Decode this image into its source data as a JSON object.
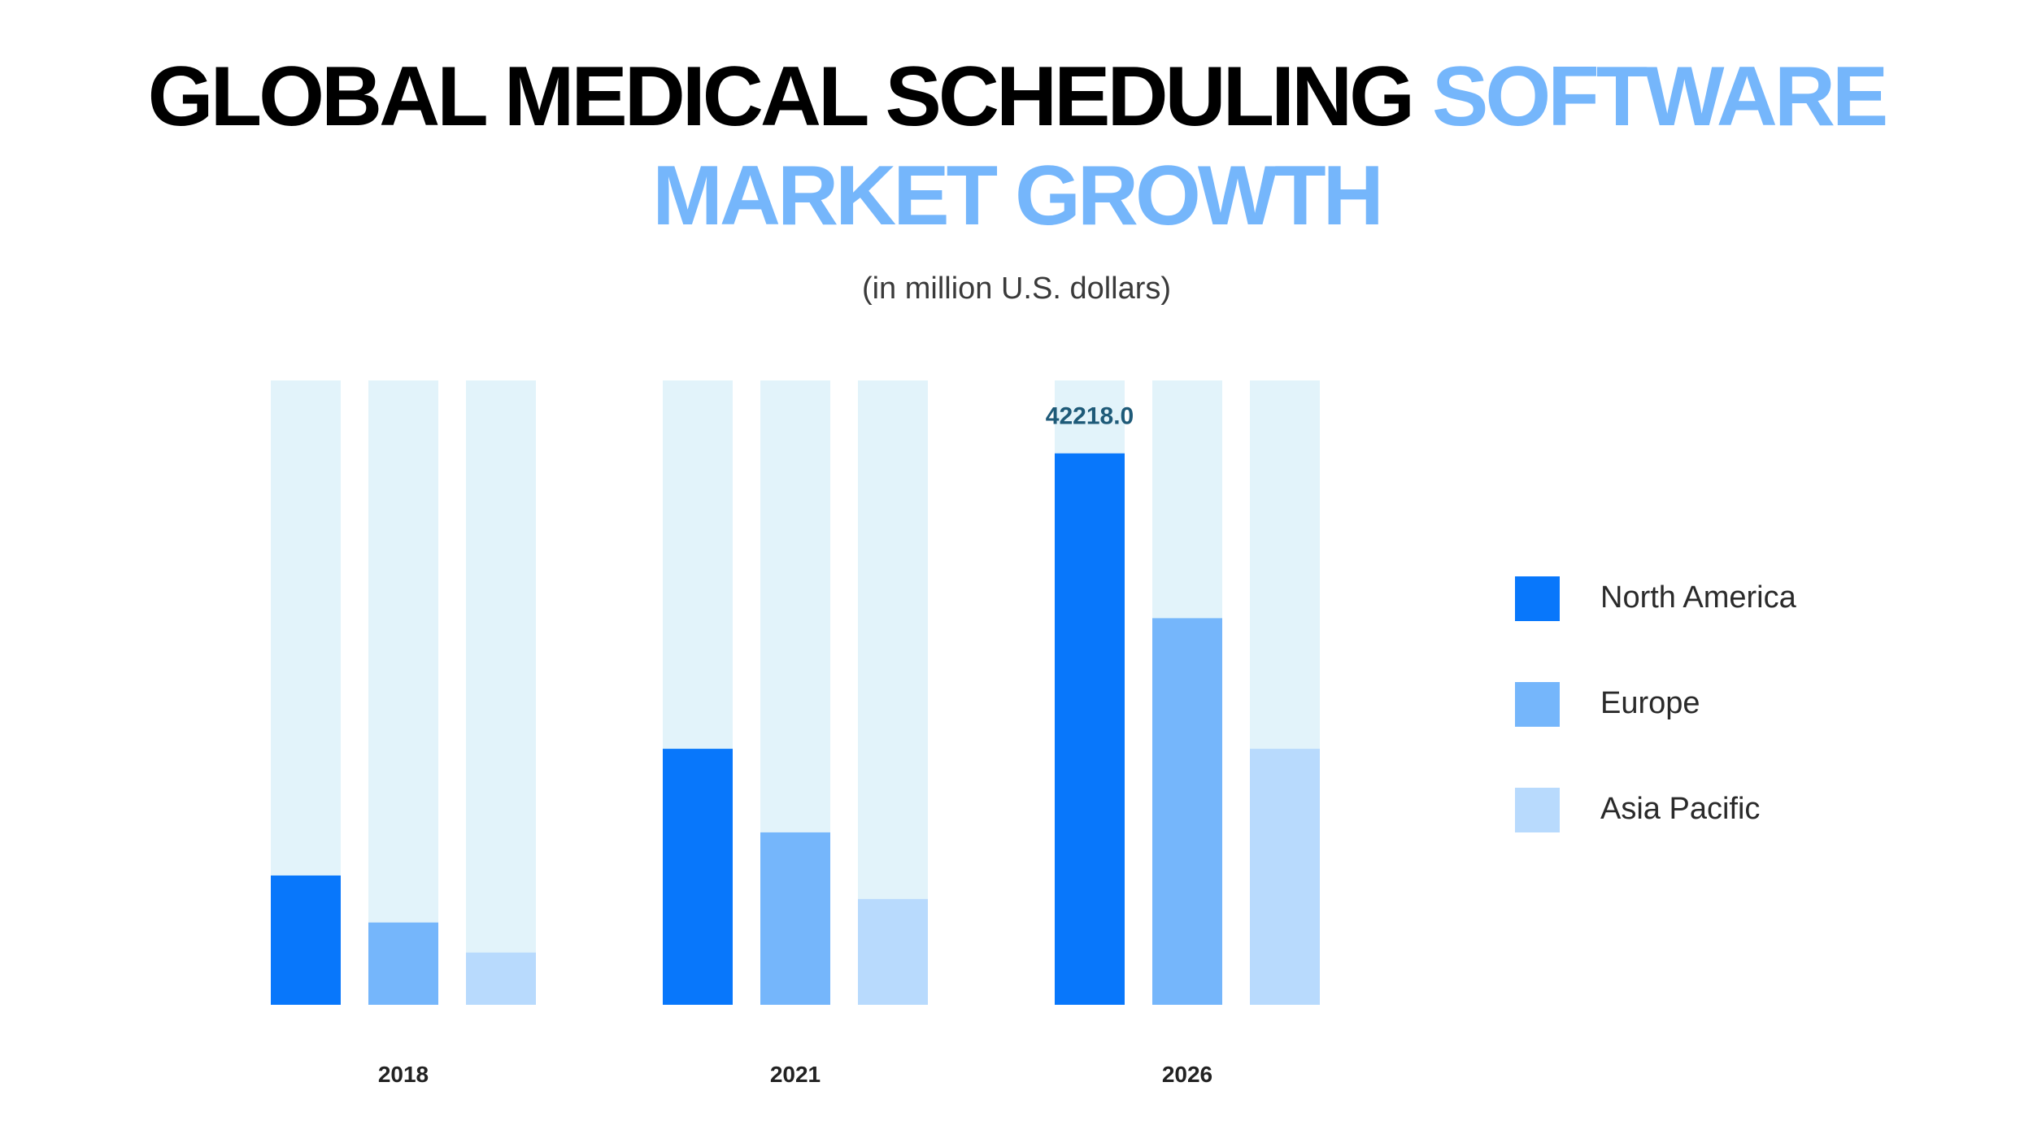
{
  "header": {
    "title_dark": "GLOBAL MEDICAL SCHEDULING",
    "title_accent": "SOFTWARE MARKET GROWTH",
    "subtitle": "(in million U.S. dollars)"
  },
  "colors": {
    "track": "#e2f3fa",
    "title_accent": "#75b6fb",
    "data_label": "#1e5a78"
  },
  "chart_data": {
    "type": "bar",
    "categories": [
      "2018",
      "2021",
      "2026"
    ],
    "ylim": [
      0,
      47800
    ],
    "grid": false,
    "legend_position": "right",
    "series": [
      {
        "name": "North America",
        "color": "#0877fb",
        "values": [
          9900,
          19600,
          42218.0
        ]
      },
      {
        "name": "Europe",
        "color": "#75b6fb",
        "values": [
          6300,
          13200,
          29600
        ]
      },
      {
        "name": "Asia Pacific",
        "color": "#b8dafd",
        "values": [
          4000,
          8100,
          19600
        ]
      }
    ],
    "data_labels": [
      {
        "series": 0,
        "category": 2,
        "text": "42218.0"
      }
    ]
  }
}
